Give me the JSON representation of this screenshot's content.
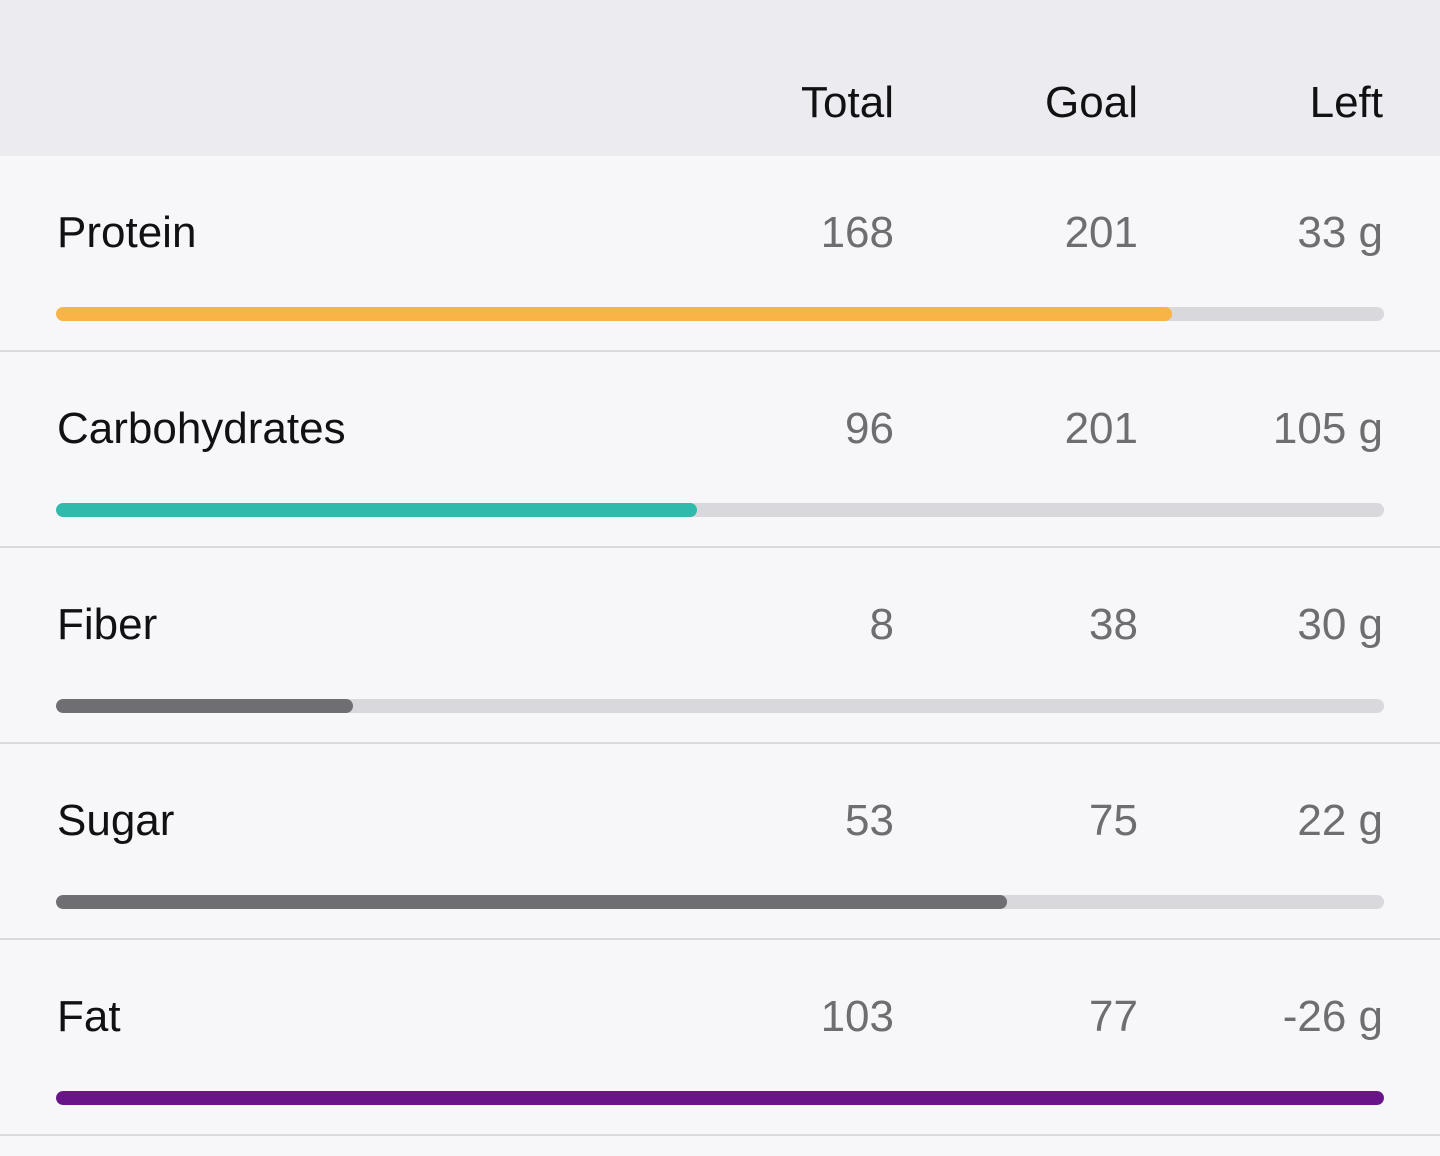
{
  "header": {
    "total_label": "Total",
    "goal_label": "Goal",
    "left_label": "Left"
  },
  "nutrients": [
    {
      "name": "Protein",
      "total": "168",
      "goal": "201",
      "left": "33 g",
      "progress": 0.84,
      "color": "#f8b446"
    },
    {
      "name": "Carbohydrates",
      "total": "96",
      "goal": "201",
      "left": "105 g",
      "progress": 0.483,
      "color": "#2fbaab"
    },
    {
      "name": "Fiber",
      "total": "8",
      "goal": "38",
      "left": "30 g",
      "progress": 0.224,
      "color": "#6e6e73"
    },
    {
      "name": "Sugar",
      "total": "53",
      "goal": "75",
      "left": "22 g",
      "progress": 0.716,
      "color": "#6e6e73"
    },
    {
      "name": "Fat",
      "total": "103",
      "goal": "77",
      "left": "-26 g",
      "progress": 1.0,
      "color": "#6a1489"
    }
  ],
  "colors": {
    "header_bg": "#ececf0",
    "row_bg": "#f7f7f9",
    "track": "#d9d9dd",
    "divider": "#d9d9de"
  }
}
